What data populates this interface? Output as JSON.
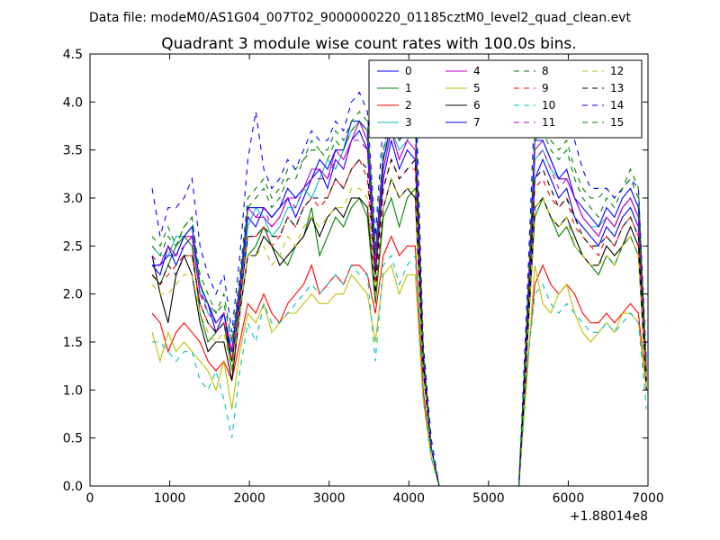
{
  "suptitle": "Data file: modeM0/AS1G04_007T02_9000000220_01185cztM0_level2_quad_clean.evt",
  "chart_data": {
    "type": "line",
    "title": "Quadrant 3 module wise count rates with 100.0s bins.",
    "xlabel": "",
    "ylabel": "",
    "x_offset_label": "+1.88014e8",
    "xlim": [
      0,
      7000
    ],
    "ylim": [
      0,
      4.5
    ],
    "xticks": [
      0,
      1000,
      2000,
      3000,
      4000,
      5000,
      6000,
      7000
    ],
    "yticks": [
      0.0,
      0.5,
      1.0,
      1.5,
      2.0,
      2.5,
      3.0,
      3.5,
      4.0,
      4.5
    ],
    "grid": false,
    "legend_placement": "top-right",
    "x": [
      780,
      880,
      980,
      1080,
      1180,
      1280,
      1380,
      1480,
      1580,
      1680,
      1780,
      1880,
      1980,
      2080,
      2180,
      2280,
      2380,
      2480,
      2580,
      2680,
      2780,
      2880,
      2980,
      3080,
      3180,
      3280,
      3380,
      3480,
      3580,
      3680,
      3780,
      3880,
      3980,
      4080,
      4180,
      4280,
      4380,
      4480,
      4580,
      4680,
      4780,
      4880,
      4980,
      5080,
      5180,
      5280,
      5380,
      5480,
      5580,
      5680,
      5780,
      5880,
      5980,
      6080,
      6180,
      6280,
      6380,
      6480,
      6580,
      6680,
      6780,
      6880,
      6980
    ],
    "series": [
      {
        "name": "0",
        "color": "#0000ff",
        "dash": "solid",
        "values": [
          2.3,
          2.2,
          2.5,
          2.3,
          2.5,
          2.6,
          2.0,
          1.9,
          1.6,
          1.8,
          1.3,
          2.0,
          2.8,
          2.7,
          2.9,
          2.8,
          2.9,
          3.0,
          2.8,
          3.0,
          3.2,
          3.3,
          3.1,
          3.4,
          3.3,
          3.6,
          3.7,
          3.5,
          2.2,
          3.2,
          3.6,
          3.3,
          3.5,
          3.4,
          1.3,
          0.4,
          0,
          0,
          0,
          0,
          0,
          0,
          0,
          0,
          0,
          0,
          0,
          1.5,
          3.2,
          3.4,
          3.2,
          3.0,
          3.1,
          2.8,
          2.7,
          2.6,
          2.5,
          2.7,
          2.6,
          2.8,
          2.9,
          2.7,
          1.1
        ]
      },
      {
        "name": "1",
        "color": "#008000",
        "dash": "solid",
        "values": [
          2.2,
          2.1,
          2.3,
          2.5,
          2.6,
          2.5,
          1.8,
          1.5,
          1.6,
          1.7,
          1.2,
          1.8,
          2.4,
          2.5,
          2.7,
          2.5,
          2.4,
          2.3,
          2.5,
          2.6,
          2.9,
          2.4,
          2.6,
          2.8,
          2.7,
          2.9,
          3.0,
          2.8,
          1.9,
          2.8,
          3.0,
          2.7,
          3.0,
          3.1,
          1.2,
          0.4,
          0,
          0,
          0,
          0,
          0,
          0,
          0,
          0,
          0,
          0,
          0,
          1.4,
          2.8,
          3.0,
          2.8,
          2.6,
          2.7,
          2.5,
          2.4,
          2.3,
          2.2,
          2.4,
          2.3,
          2.5,
          2.6,
          2.4,
          1.0
        ]
      },
      {
        "name": "2",
        "color": "#ff0000",
        "dash": "solid",
        "values": [
          1.8,
          1.7,
          1.4,
          1.6,
          1.7,
          1.6,
          1.5,
          1.3,
          1.2,
          1.3,
          1.1,
          1.5,
          1.9,
          1.8,
          2.0,
          1.8,
          1.7,
          1.9,
          2.0,
          2.1,
          2.3,
          2.0,
          2.1,
          2.2,
          2.1,
          2.3,
          2.3,
          2.2,
          1.8,
          2.4,
          2.6,
          2.4,
          2.5,
          2.5,
          1.0,
          0.3,
          0,
          0,
          0,
          0,
          0,
          0,
          0,
          0,
          0,
          0,
          0,
          1.2,
          2.1,
          2.3,
          2.1,
          2.0,
          2.1,
          2.0,
          1.8,
          1.7,
          1.7,
          1.8,
          1.7,
          1.8,
          1.9,
          1.8,
          1.0
        ]
      },
      {
        "name": "3",
        "color": "#00bfbf",
        "dash": "solid",
        "values": [
          2.5,
          2.4,
          2.4,
          2.6,
          2.6,
          2.7,
          2.1,
          1.8,
          1.7,
          1.8,
          1.4,
          1.9,
          2.7,
          2.9,
          2.8,
          2.6,
          2.7,
          2.9,
          2.9,
          3.1,
          3.0,
          3.2,
          3.4,
          3.3,
          3.5,
          3.7,
          3.8,
          3.6,
          2.4,
          3.4,
          3.7,
          3.5,
          3.6,
          3.8,
          1.3,
          0.4,
          0,
          0,
          0,
          0,
          0,
          0,
          0,
          0,
          0,
          0,
          0,
          1.6,
          3.4,
          3.5,
          3.3,
          3.2,
          3.2,
          3.0,
          2.8,
          2.7,
          2.7,
          2.8,
          2.7,
          2.9,
          3.0,
          2.8,
          1.1
        ]
      },
      {
        "name": "4",
        "color": "#bf00bf",
        "dash": "solid",
        "values": [
          2.3,
          2.3,
          2.5,
          2.4,
          2.6,
          2.6,
          2.0,
          1.9,
          1.7,
          1.8,
          1.4,
          2.1,
          2.9,
          2.8,
          2.8,
          2.7,
          2.8,
          3.0,
          3.0,
          3.1,
          3.3,
          3.3,
          3.2,
          3.5,
          3.4,
          3.6,
          3.8,
          3.6,
          2.3,
          3.3,
          3.7,
          3.4,
          3.6,
          3.5,
          1.3,
          0.4,
          0,
          0,
          0,
          0,
          0,
          0,
          0,
          0,
          0,
          0,
          0,
          1.6,
          3.5,
          3.6,
          3.4,
          3.2,
          3.2,
          3.0,
          2.8,
          2.7,
          2.6,
          2.8,
          2.7,
          2.9,
          3.0,
          2.8,
          1.2
        ]
      },
      {
        "name": "5",
        "color": "#bfbf00",
        "dash": "solid",
        "values": [
          1.6,
          1.3,
          1.6,
          1.4,
          1.5,
          1.4,
          1.3,
          1.2,
          1.0,
          1.3,
          0.8,
          1.4,
          1.8,
          1.7,
          1.9,
          1.6,
          1.7,
          1.8,
          1.8,
          1.9,
          2.0,
          1.9,
          1.9,
          2.0,
          2.0,
          2.2,
          2.1,
          2.0,
          1.5,
          2.2,
          2.3,
          2.0,
          2.2,
          2.2,
          0.9,
          0.3,
          0,
          0,
          0,
          0,
          0,
          0,
          0,
          0,
          0,
          0,
          0,
          1.1,
          2.3,
          1.9,
          1.8,
          2.0,
          2.1,
          1.8,
          1.6,
          1.5,
          1.6,
          1.7,
          1.6,
          1.8,
          1.8,
          1.7,
          1.0
        ]
      },
      {
        "name": "6",
        "color": "#000000",
        "dash": "solid",
        "values": [
          2.4,
          2.0,
          1.7,
          2.2,
          2.4,
          2.2,
          1.7,
          1.4,
          1.5,
          1.5,
          1.1,
          1.8,
          2.4,
          2.4,
          2.6,
          2.5,
          2.3,
          2.4,
          2.5,
          2.6,
          2.8,
          2.6,
          2.8,
          2.9,
          2.8,
          3.0,
          3.0,
          2.9,
          2.0,
          2.9,
          3.2,
          3.0,
          3.1,
          3.0,
          1.2,
          0.4,
          0,
          0,
          0,
          0,
          0,
          0,
          0,
          0,
          0,
          0,
          0,
          1.4,
          2.9,
          3.0,
          2.8,
          2.7,
          2.8,
          2.6,
          2.4,
          2.3,
          2.3,
          2.5,
          2.4,
          2.5,
          2.7,
          2.5,
          1.0
        ]
      },
      {
        "name": "7",
        "color": "#0000ff",
        "dash": "solid",
        "values": [
          2.3,
          2.3,
          2.4,
          2.4,
          2.6,
          2.7,
          2.1,
          1.9,
          1.7,
          1.8,
          1.4,
          2.1,
          2.9,
          2.9,
          2.9,
          2.8,
          2.9,
          3.1,
          3.0,
          3.1,
          3.2,
          3.4,
          3.3,
          3.5,
          3.5,
          3.8,
          3.8,
          3.7,
          2.4,
          3.4,
          3.8,
          3.6,
          3.7,
          3.9,
          1.4,
          0.4,
          0,
          0,
          0,
          0,
          0,
          0,
          0,
          0,
          0,
          0,
          0,
          1.7,
          3.6,
          3.6,
          3.4,
          3.2,
          3.3,
          3.0,
          2.9,
          2.8,
          2.7,
          2.9,
          2.8,
          3.0,
          3.1,
          2.9,
          1.2
        ]
      },
      {
        "name": "8",
        "color": "#008000",
        "dash": "dashed",
        "values": [
          2.6,
          2.5,
          2.7,
          2.5,
          2.7,
          2.8,
          2.2,
          2.0,
          1.8,
          2.0,
          1.5,
          2.2,
          3.0,
          3.1,
          3.2,
          3.0,
          3.1,
          3.3,
          3.3,
          3.4,
          3.6,
          3.5,
          3.5,
          3.7,
          3.6,
          3.8,
          3.9,
          3.8,
          2.5,
          3.5,
          3.9,
          3.7,
          3.8,
          3.9,
          1.4,
          0.4,
          0,
          0,
          0,
          0,
          0,
          0,
          0,
          0,
          0,
          0,
          0,
          1.7,
          3.7,
          3.8,
          3.6,
          3.5,
          3.6,
          3.3,
          3.1,
          3.0,
          3.0,
          3.1,
          3.0,
          3.1,
          3.3,
          3.1,
          1.2
        ]
      },
      {
        "name": "9",
        "color": "#ff0000",
        "dash": "dashed",
        "values": [
          2.2,
          2.1,
          2.2,
          2.3,
          2.4,
          2.4,
          1.9,
          1.7,
          1.6,
          1.7,
          1.3,
          1.9,
          2.6,
          2.6,
          2.7,
          2.5,
          2.6,
          2.8,
          2.7,
          2.9,
          3.0,
          2.9,
          3.0,
          3.2,
          3.1,
          3.3,
          3.4,
          3.2,
          2.1,
          3.1,
          3.4,
          3.2,
          3.3,
          3.3,
          1.2,
          0.4,
          0,
          0,
          0,
          0,
          0,
          0,
          0,
          0,
          0,
          0,
          0,
          1.5,
          3.1,
          3.2,
          3.0,
          2.9,
          3.0,
          2.7,
          2.6,
          2.5,
          2.4,
          2.6,
          2.5,
          2.7,
          2.8,
          2.6,
          1.1
        ]
      },
      {
        "name": "10",
        "color": "#00bfbf",
        "dash": "dashed",
        "values": [
          1.5,
          1.5,
          1.4,
          1.3,
          1.4,
          1.4,
          1.1,
          1.0,
          1.2,
          0.9,
          0.5,
          1.2,
          1.7,
          1.5,
          1.9,
          1.7,
          1.7,
          1.8,
          1.9,
          2.0,
          2.1,
          2.0,
          2.1,
          2.2,
          2.1,
          2.3,
          2.2,
          2.2,
          1.3,
          2.3,
          2.4,
          2.1,
          2.3,
          2.4,
          0.9,
          0.3,
          0,
          0,
          0,
          0,
          0,
          0,
          0,
          0,
          0,
          0,
          0,
          1.2,
          2.0,
          2.1,
          1.9,
          1.8,
          1.9,
          1.8,
          1.7,
          1.6,
          1.6,
          1.7,
          1.6,
          1.7,
          1.8,
          1.7,
          0.8
        ]
      },
      {
        "name": "11",
        "color": "#bf00bf",
        "dash": "dashed",
        "values": [
          2.4,
          2.3,
          2.5,
          2.4,
          2.5,
          2.6,
          2.0,
          1.8,
          1.7,
          1.8,
          1.4,
          2.0,
          2.8,
          2.8,
          2.9,
          2.7,
          2.8,
          3.0,
          2.9,
          3.1,
          3.2,
          3.2,
          3.2,
          3.4,
          3.3,
          3.6,
          3.6,
          3.5,
          2.3,
          3.3,
          3.7,
          3.4,
          3.6,
          3.7,
          1.3,
          0.4,
          0,
          0,
          0,
          0,
          0,
          0,
          0,
          0,
          0,
          0,
          0,
          1.6,
          3.4,
          3.5,
          3.3,
          3.1,
          3.2,
          3.0,
          2.8,
          2.7,
          2.6,
          2.8,
          2.7,
          2.9,
          3.0,
          2.8,
          1.1
        ]
      },
      {
        "name": "12",
        "color": "#bfbf00",
        "dash": "dashed",
        "values": [
          2.1,
          2.0,
          2.0,
          2.1,
          2.2,
          2.2,
          1.8,
          1.6,
          1.5,
          1.6,
          1.2,
          1.8,
          2.4,
          2.4,
          2.5,
          2.3,
          2.4,
          2.6,
          2.5,
          2.7,
          2.8,
          2.7,
          2.8,
          2.9,
          2.9,
          3.1,
          3.1,
          3.0,
          2.0,
          2.9,
          3.2,
          3.0,
          3.1,
          3.1,
          1.2,
          0.4,
          0,
          0,
          0,
          0,
          0,
          0,
          0,
          0,
          0,
          0,
          0,
          1.4,
          2.9,
          3.0,
          2.8,
          2.7,
          2.8,
          2.5,
          2.4,
          2.3,
          2.3,
          2.4,
          2.3,
          2.5,
          2.6,
          2.4,
          1.0
        ]
      },
      {
        "name": "13",
        "color": "#000000",
        "dash": "dashed",
        "values": [
          2.2,
          2.1,
          2.3,
          2.2,
          2.4,
          2.4,
          1.9,
          1.7,
          1.6,
          1.7,
          1.3,
          1.9,
          2.6,
          2.6,
          2.7,
          2.6,
          2.6,
          2.8,
          2.7,
          2.9,
          3.0,
          3.0,
          3.0,
          3.2,
          3.1,
          3.3,
          3.4,
          3.3,
          2.2,
          3.1,
          3.4,
          3.2,
          3.3,
          3.4,
          1.3,
          0.4,
          0,
          0,
          0,
          0,
          0,
          0,
          0,
          0,
          0,
          0,
          0,
          1.5,
          3.2,
          3.3,
          3.1,
          2.9,
          3.0,
          2.8,
          2.6,
          2.5,
          2.5,
          2.6,
          2.5,
          2.7,
          2.8,
          2.6,
          1.1
        ]
      },
      {
        "name": "14",
        "color": "#0000ff",
        "dash": "dashed",
        "values": [
          3.1,
          2.6,
          2.9,
          2.9,
          3.0,
          3.2,
          2.5,
          2.2,
          2.0,
          2.2,
          1.6,
          2.4,
          3.4,
          3.9,
          3.3,
          3.1,
          3.2,
          3.4,
          3.3,
          3.5,
          3.7,
          3.6,
          3.6,
          3.8,
          3.7,
          4.0,
          4.1,
          3.9,
          2.6,
          3.8,
          4.2,
          4.0,
          4.1,
          4.3,
          1.5,
          0.5,
          0,
          0,
          0,
          0,
          0,
          0,
          0,
          0,
          0,
          0,
          0,
          1.9,
          4.0,
          4.2,
          4.0,
          3.8,
          3.9,
          3.6,
          3.3,
          3.1,
          3.1,
          3.1,
          3.0,
          3.1,
          3.2,
          3.1,
          1.3
        ]
      },
      {
        "name": "15",
        "color": "#008000",
        "dash": "dashed",
        "values": [
          2.5,
          2.4,
          2.6,
          2.5,
          2.7,
          2.8,
          2.1,
          1.9,
          1.8,
          1.9,
          1.5,
          2.1,
          2.9,
          3.0,
          3.1,
          2.9,
          3.0,
          3.2,
          3.2,
          3.4,
          3.5,
          3.5,
          3.4,
          3.6,
          3.5,
          3.7,
          3.8,
          3.7,
          2.4,
          3.5,
          3.8,
          3.6,
          3.7,
          3.8,
          1.4,
          0.4,
          0,
          0,
          0,
          0,
          0,
          0,
          0,
          0,
          0,
          0,
          0,
          1.7,
          3.6,
          3.7,
          3.5,
          3.4,
          3.5,
          3.2,
          3.0,
          2.9,
          2.8,
          3.0,
          2.9,
          3.1,
          3.2,
          3.0,
          1.2
        ]
      }
    ]
  }
}
